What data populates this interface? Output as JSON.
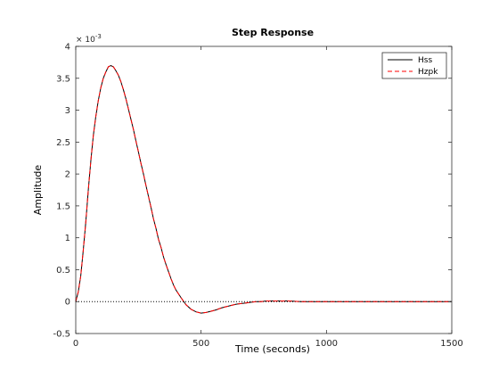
{
  "chart_data": {
    "type": "line",
    "title": "Step Response",
    "xlabel": "Time (seconds)",
    "ylabel": "Amplitude",
    "y_exponent_label": "× 10",
    "y_exponent_power": "-3",
    "xlim": [
      0,
      1500
    ],
    "ylim": [
      -0.5,
      4
    ],
    "x_ticks": [
      0,
      500,
      1000,
      1500
    ],
    "x_tick_labels": [
      "0",
      "500",
      "1000",
      "1500"
    ],
    "y_ticks": [
      -0.5,
      0,
      0.5,
      1,
      1.5,
      2,
      2.5,
      3,
      3.5,
      4
    ],
    "y_tick_labels": [
      "-0.5",
      "0",
      "0.5",
      "1",
      "1.5",
      "2",
      "2.5",
      "3",
      "3.5",
      "4"
    ],
    "grid": false,
    "legend_position": "top-right",
    "reference_line": {
      "y": 0,
      "style": "dotted",
      "color": "#000000"
    },
    "series": [
      {
        "name": "Hss",
        "color": "#000000",
        "style": "solid",
        "x": [
          0,
          10,
          20,
          30,
          40,
          50,
          60,
          70,
          80,
          90,
          100,
          110,
          120,
          130,
          140,
          150,
          160,
          170,
          180,
          190,
          200,
          210,
          220,
          230,
          240,
          250,
          260,
          270,
          280,
          290,
          300,
          310,
          320,
          330,
          340,
          350,
          360,
          370,
          380,
          390,
          400,
          420,
          440,
          460,
          480,
          500,
          520,
          540,
          560,
          580,
          600,
          620,
          640,
          660,
          680,
          700,
          720,
          740,
          760,
          780,
          800,
          850,
          900,
          950,
          1000,
          1050,
          1100,
          1150,
          1200,
          1250,
          1300,
          1350,
          1400,
          1450,
          1500
        ],
        "y": [
          0,
          0.15,
          0.4,
          0.8,
          1.25,
          1.75,
          2.2,
          2.6,
          2.9,
          3.15,
          3.35,
          3.5,
          3.6,
          3.68,
          3.7,
          3.68,
          3.62,
          3.55,
          3.45,
          3.32,
          3.18,
          3.02,
          2.86,
          2.7,
          2.52,
          2.35,
          2.17,
          2.0,
          1.82,
          1.65,
          1.48,
          1.3,
          1.15,
          0.98,
          0.85,
          0.7,
          0.58,
          0.47,
          0.36,
          0.26,
          0.18,
          0.06,
          -0.05,
          -0.12,
          -0.16,
          -0.18,
          -0.17,
          -0.15,
          -0.13,
          -0.1,
          -0.08,
          -0.06,
          -0.04,
          -0.03,
          -0.02,
          -0.01,
          0.0,
          0.0,
          0.01,
          0.01,
          0.01,
          0.01,
          0.0,
          0.0,
          0.0,
          0.0,
          0.0,
          0.0,
          0.0,
          0.0,
          0.0,
          0.0,
          0.0,
          0.0,
          0.0
        ]
      },
      {
        "name": "Hzpk",
        "color": "#ff0000",
        "style": "dashed",
        "x": [
          0,
          10,
          20,
          30,
          40,
          50,
          60,
          70,
          80,
          90,
          100,
          110,
          120,
          130,
          140,
          150,
          160,
          170,
          180,
          190,
          200,
          210,
          220,
          230,
          240,
          250,
          260,
          270,
          280,
          290,
          300,
          310,
          320,
          330,
          340,
          350,
          360,
          370,
          380,
          390,
          400,
          420,
          440,
          460,
          480,
          500,
          520,
          540,
          560,
          580,
          600,
          620,
          640,
          660,
          680,
          700,
          720,
          740,
          760,
          780,
          800,
          850,
          900,
          950,
          1000,
          1050,
          1100,
          1150,
          1200,
          1250,
          1300,
          1350,
          1400,
          1450,
          1500
        ],
        "y": [
          0,
          0.15,
          0.4,
          0.8,
          1.25,
          1.75,
          2.2,
          2.6,
          2.9,
          3.15,
          3.35,
          3.5,
          3.6,
          3.68,
          3.7,
          3.68,
          3.62,
          3.55,
          3.45,
          3.32,
          3.18,
          3.02,
          2.86,
          2.7,
          2.52,
          2.35,
          2.17,
          2.0,
          1.82,
          1.65,
          1.48,
          1.3,
          1.15,
          0.98,
          0.85,
          0.7,
          0.58,
          0.47,
          0.36,
          0.26,
          0.18,
          0.06,
          -0.05,
          -0.12,
          -0.16,
          -0.18,
          -0.17,
          -0.15,
          -0.13,
          -0.1,
          -0.08,
          -0.06,
          -0.04,
          -0.03,
          -0.02,
          -0.01,
          0.0,
          0.0,
          0.01,
          0.01,
          0.01,
          0.01,
          0.0,
          0.0,
          0.0,
          0.0,
          0.0,
          0.0,
          0.0,
          0.0,
          0.0,
          0.0,
          0.0,
          0.0,
          0.0
        ]
      }
    ]
  }
}
